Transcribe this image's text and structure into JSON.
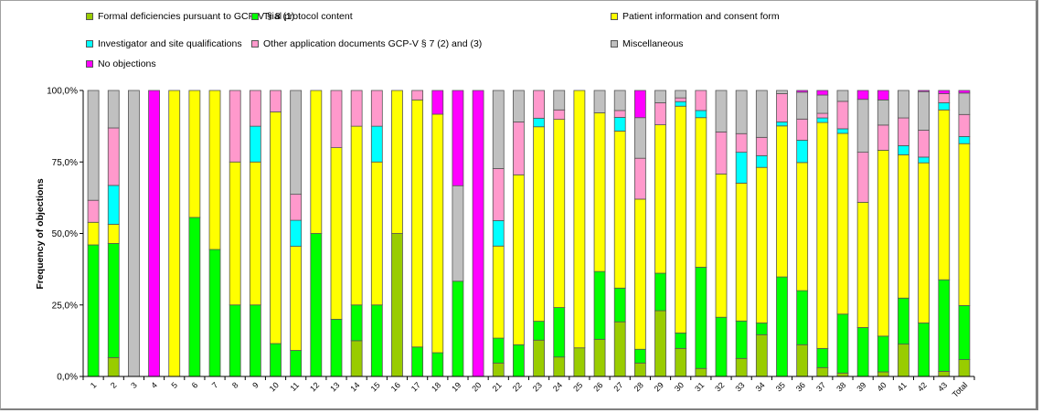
{
  "chart_data": {
    "type": "bar",
    "stacked": true,
    "percent": true,
    "title": "",
    "xlabel": "",
    "ylabel": "Frequency of objections",
    "ylim": [
      0,
      100
    ],
    "yticks": [
      "0,0%",
      "25,0%",
      "50,0%",
      "75,0%",
      "100,0%"
    ],
    "ytick_values": [
      0,
      25,
      50,
      75,
      100
    ],
    "grid": false,
    "legend_position": "top",
    "categories": [
      "1",
      "2",
      "3",
      "4",
      "5",
      "6",
      "7",
      "8",
      "9",
      "10",
      "11",
      "12",
      "13",
      "14",
      "15",
      "16",
      "17",
      "18",
      "19",
      "20",
      "21",
      "22",
      "23",
      "24",
      "25",
      "26",
      "27",
      "28",
      "29",
      "30",
      "31",
      "32",
      "33",
      "34",
      "35",
      "36",
      "37",
      "38",
      "39",
      "40",
      "41",
      "42",
      "43",
      "Total"
    ],
    "series": [
      {
        "name": "Formal deficiencies pursuant to GCP-V § 8 (1)",
        "color": "#99cc00",
        "values": [
          0,
          6.6,
          0,
          0,
          0,
          0,
          0,
          0,
          0,
          0,
          0,
          0,
          0,
          12.5,
          0,
          50,
          0,
          0,
          0,
          0,
          4.7,
          0,
          12.7,
          6.8,
          10,
          13,
          19.1,
          4.7,
          23,
          9.8,
          2.8,
          0,
          6.3,
          14.6,
          0,
          11.1,
          3.1,
          1.2,
          0,
          1.6,
          11.3,
          0,
          1.8,
          5.9
        ]
      },
      {
        "name": "Trial protocol content",
        "color": "#00ff00",
        "values": [
          46,
          39.9,
          0,
          0,
          0,
          55.6,
          44.4,
          25,
          25,
          11.5,
          9.1,
          50,
          20,
          12.5,
          25,
          0,
          10.3,
          8.3,
          33.3,
          0,
          8.7,
          11.1,
          6.6,
          17.3,
          0,
          23.7,
          11.8,
          4.8,
          13.1,
          5.4,
          35.4,
          20.7,
          13.1,
          4.1,
          34.8,
          18.9,
          6.7,
          20.6,
          17.1,
          12.5,
          16.1,
          18.7,
          32,
          18.9
        ]
      },
      {
        "name": "Patient information and consent form",
        "color": "#ffff00",
        "values": [
          7.9,
          6.7,
          0,
          0,
          100,
          44.4,
          55.6,
          50,
          50,
          81,
          36.4,
          50,
          60,
          62.5,
          50,
          50,
          86.4,
          83.4,
          0,
          0,
          32.2,
          59.4,
          68,
          65.8,
          90,
          55.5,
          54.9,
          52.5,
          51.9,
          79.3,
          52.3,
          50.1,
          48.2,
          54.4,
          52.8,
          44.8,
          79,
          63.2,
          43.8,
          65,
          50.1,
          56,
          59.4,
          56.6
        ]
      },
      {
        "name": "Investigator and site qualifications",
        "color": "#00ffff",
        "values": [
          0,
          13.6,
          0,
          0,
          0,
          0,
          0,
          0,
          12.5,
          0,
          9.1,
          0,
          0,
          0,
          12.5,
          0,
          0,
          0,
          0,
          0,
          8.9,
          0,
          3,
          0,
          0,
          0,
          4.8,
          0,
          0,
          1.6,
          2.5,
          0,
          10.8,
          4.1,
          1.4,
          7.8,
          1.6,
          1.6,
          0,
          0,
          3.2,
          2,
          2.5,
          2.5
        ]
      },
      {
        "name": "Other application documents GCP-V § 7 (2) and (3)",
        "color": "#ff99cc",
        "values": [
          7.7,
          20.1,
          0,
          0,
          0,
          0,
          0,
          25,
          12.5,
          7.5,
          9.1,
          0,
          20,
          12.5,
          12.5,
          0,
          3.3,
          0,
          0,
          0,
          18.2,
          18.5,
          9.7,
          3.3,
          0,
          0,
          2.4,
          14.3,
          7.7,
          1.3,
          7,
          14.7,
          6.5,
          6.4,
          9.9,
          7.4,
          1.6,
          9.6,
          17.5,
          8.8,
          9.7,
          9.4,
          3.2,
          7.7
        ]
      },
      {
        "name": "Miscellaneous",
        "color": "#c0c0c0",
        "values": [
          38.4,
          13.1,
          100,
          0,
          0,
          0,
          0,
          0,
          0,
          0,
          36.3,
          0,
          0,
          0,
          0,
          0,
          0,
          0,
          33.4,
          0,
          27.3,
          11,
          0,
          6.8,
          0,
          7.8,
          7,
          14.2,
          4.3,
          2.6,
          0,
          14.5,
          15.1,
          16.4,
          1.1,
          9.4,
          6.4,
          3.8,
          18.5,
          8.8,
          9.6,
          13.5,
          0,
          7.5
        ]
      },
      {
        "name": "No objections",
        "color": "#ff00ff",
        "values": [
          0,
          0,
          0,
          100,
          0,
          0,
          0,
          0,
          0,
          0,
          0,
          0,
          0,
          0,
          0,
          0,
          0,
          8.3,
          33.3,
          100,
          0,
          0,
          0,
          0,
          0,
          0,
          0,
          9.5,
          0,
          0,
          0,
          0,
          0,
          0,
          0,
          0.6,
          1.6,
          0,
          3.1,
          3.3,
          0,
          0.4,
          1.1,
          0.9
        ]
      }
    ]
  }
}
